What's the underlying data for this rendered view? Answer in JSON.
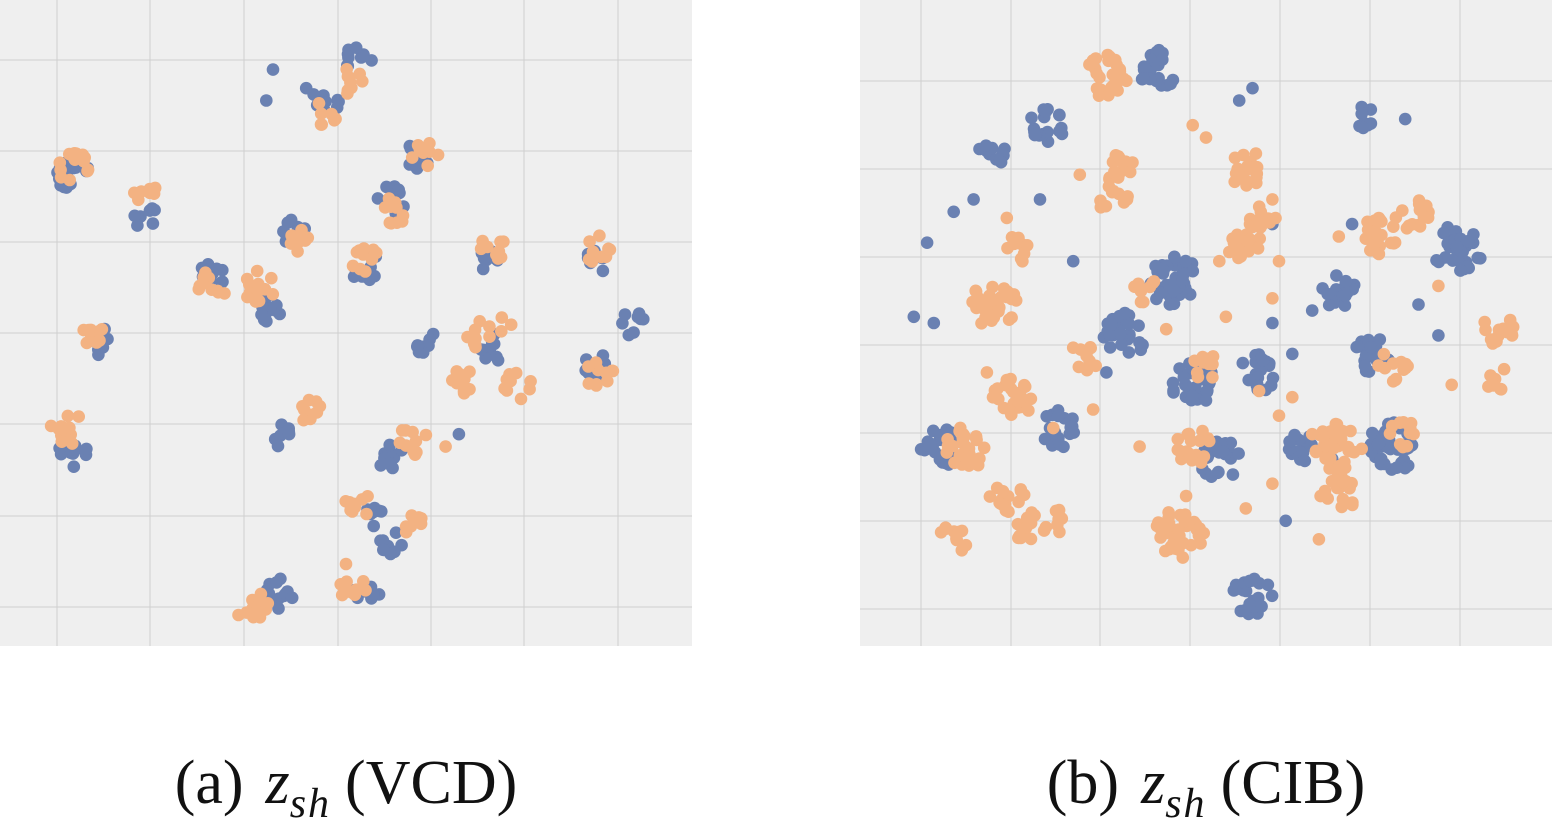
{
  "colors": {
    "series_a": "#6a81b2",
    "series_b": "#f3b282",
    "background": "#efefef",
    "grid": "#cfcfcf"
  },
  "chart_data": [
    {
      "type": "scatter",
      "panel": "a",
      "caption": {
        "label": "(a)",
        "var": "z",
        "sub": "sh",
        "method": "(VCD)"
      },
      "xlim": [
        0,
        100
      ],
      "ylim": [
        0,
        100
      ],
      "grid": true,
      "tick_labels": false,
      "series": [
        {
          "color": "#6a81b2",
          "clusters": [
            [
              52,
              93,
              10
            ],
            [
              47,
              86,
              9
            ],
            [
              9,
              74,
              16
            ],
            [
              20,
              67,
              7
            ],
            [
              61,
              77,
              9
            ],
            [
              57,
              70,
              11
            ],
            [
              42,
              65,
              8
            ],
            [
              30,
              58,
              12
            ],
            [
              38,
              53,
              16
            ],
            [
              53,
              59,
              11
            ],
            [
              71,
              60,
              9
            ],
            [
              88,
              60,
              9
            ],
            [
              13,
              47,
              9
            ],
            [
              62,
              47,
              8
            ],
            [
              72,
              46,
              10
            ],
            [
              88,
              43,
              10
            ],
            [
              93,
              50,
              8
            ],
            [
              9,
              29,
              14
            ],
            [
              40,
              32,
              9
            ],
            [
              57,
              28,
              10
            ],
            [
              54,
              19,
              8
            ],
            [
              57,
              14,
              8
            ],
            [
              40,
              6,
              13
            ],
            [
              53,
              6,
              10
            ]
          ],
          "points": [
            [
              39,
              91
            ],
            [
              44,
              88
            ],
            [
              67,
              32
            ],
            [
              38,
              86
            ]
          ]
        },
        {
          "color": "#f3b282",
          "clusters": [
            [
              51,
              89,
              9
            ],
            [
              47,
              84,
              7
            ],
            [
              9,
              75,
              15
            ],
            [
              20,
              71,
              7
            ],
            [
              62,
              77,
              8
            ],
            [
              57,
              68,
              10
            ],
            [
              43,
              63,
              7
            ],
            [
              30,
              56,
              12
            ],
            [
              37,
              56,
              14
            ],
            [
              53,
              60,
              10
            ],
            [
              72,
              62,
              9
            ],
            [
              88,
              62,
              9
            ],
            [
              12,
              48,
              9
            ],
            [
              70,
              48,
              9
            ],
            [
              68,
              41,
              10
            ],
            [
              76,
              40,
              10
            ],
            [
              88,
              42,
              10
            ],
            [
              8,
              33,
              15
            ],
            [
              44,
              36,
              10
            ],
            [
              60,
              31,
              10
            ],
            [
              52,
              21,
              9
            ],
            [
              60,
              17,
              8
            ],
            [
              51,
              7,
              10
            ],
            [
              36,
              4,
              15
            ],
            [
              74,
              50,
              3
            ]
          ],
          "points": [
            [
              65,
              30
            ],
            [
              50,
              11
            ]
          ]
        }
      ]
    },
    {
      "type": "scatter",
      "panel": "b",
      "caption": {
        "label": "(b)",
        "var": "z",
        "sub": "sh",
        "method": "(CIB)"
      },
      "xlim": [
        0,
        100
      ],
      "ylim": [
        0,
        100
      ],
      "grid": true,
      "tick_labels": false,
      "series": [
        {
          "color": "#6a81b2",
          "clusters": [
            [
              43,
              91,
              22
            ],
            [
              26,
              82,
              18
            ],
            [
              18,
              77,
              12
            ],
            [
              74,
              83,
              8
            ],
            [
              88,
              62,
              38
            ],
            [
              75,
              45,
              18
            ],
            [
              45,
              57,
              40
            ],
            [
              38,
              48,
              30
            ],
            [
              58,
              42,
              20
            ],
            [
              48,
              40,
              30
            ],
            [
              10,
              30,
              22
            ],
            [
              28,
              33,
              22
            ],
            [
              52,
              28,
              25
            ],
            [
              57,
              6,
              22
            ],
            [
              78,
              30,
              40
            ],
            [
              65,
              30,
              14
            ],
            [
              70,
              55,
              16
            ]
          ],
          "points": [
            [
              8,
              63
            ],
            [
              6,
              51
            ],
            [
              9,
              50
            ],
            [
              57,
              88
            ],
            [
              55,
              86
            ],
            [
              80,
              83
            ],
            [
              15,
              70
            ],
            [
              12,
              68
            ],
            [
              60,
              50
            ],
            [
              63,
              45
            ],
            [
              66,
              52
            ],
            [
              69,
              28
            ],
            [
              62,
              18
            ],
            [
              35,
              42
            ],
            [
              30,
              60
            ],
            [
              25,
              70
            ],
            [
              85,
              48
            ],
            [
              82,
              53
            ],
            [
              60,
              66
            ],
            [
              72,
              66
            ]
          ]
        },
        {
          "color": "#f3b282",
          "clusters": [
            [
              35,
              90,
              26
            ],
            [
              37,
              75,
              14
            ],
            [
              36,
              70,
              12
            ],
            [
              56,
              75,
              18
            ],
            [
              58,
              66,
              16
            ],
            [
              56,
              62,
              16
            ],
            [
              22,
              62,
              10
            ],
            [
              18,
              53,
              32
            ],
            [
              21,
              38,
              24
            ],
            [
              14,
              30,
              28
            ],
            [
              20,
              22,
              16
            ],
            [
              23,
              17,
              12
            ],
            [
              27,
              18,
              8
            ],
            [
              48,
              30,
              18
            ],
            [
              46,
              16,
              38
            ],
            [
              76,
              64,
              22
            ],
            [
              81,
              68,
              16
            ],
            [
              78,
              43,
              12
            ],
            [
              94,
              49,
              14
            ],
            [
              94,
              41,
              8
            ],
            [
              70,
              30,
              34
            ],
            [
              70,
              22,
              20
            ],
            [
              80,
              32,
              12
            ],
            [
              50,
              43,
              10
            ],
            [
              41,
              55,
              8
            ],
            [
              12,
              15,
              10
            ],
            [
              32,
              44,
              8
            ]
          ],
          "points": [
            [
              50,
              80
            ],
            [
              48,
              82
            ],
            [
              60,
              54
            ],
            [
              61,
              60
            ],
            [
              52,
              60
            ],
            [
              66,
              32
            ],
            [
              61,
              35
            ],
            [
              60,
              24
            ],
            [
              58,
              39
            ],
            [
              30,
              46
            ],
            [
              17,
              42
            ],
            [
              27,
              33
            ],
            [
              33,
              36
            ],
            [
              70,
              64
            ],
            [
              60,
              70
            ],
            [
              31,
              74
            ],
            [
              20,
              67
            ],
            [
              85,
              56
            ],
            [
              87,
              40
            ],
            [
              63,
              38
            ],
            [
              40,
              30
            ],
            [
              44,
              49
            ],
            [
              53,
              51
            ],
            [
              67,
              15
            ],
            [
              56,
              20
            ],
            [
              47,
              22
            ]
          ]
        }
      ]
    }
  ]
}
